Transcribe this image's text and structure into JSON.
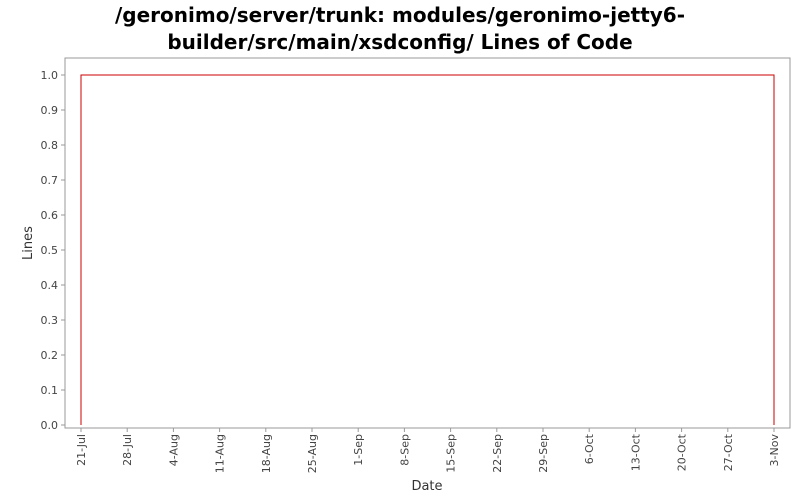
{
  "chart_data": {
    "type": "line",
    "title_lines": [
      "/geronimo/server/trunk: modules/geronimo-jetty6-",
      "builder/src/main/xsdconfig/ Lines of Code"
    ],
    "xlabel": "Date",
    "ylabel": "Lines",
    "x_ticks": [
      "21-Jul",
      "28-Jul",
      "4-Aug",
      "11-Aug",
      "18-Aug",
      "25-Aug",
      "1-Sep",
      "8-Sep",
      "15-Sep",
      "22-Sep",
      "29-Sep",
      "6-Oct",
      "13-Oct",
      "20-Oct",
      "27-Oct",
      "3-Nov"
    ],
    "y_ticks": [
      "0.0",
      "0.1",
      "0.2",
      "0.3",
      "0.4",
      "0.5",
      "0.6",
      "0.7",
      "0.8",
      "0.9",
      "1.0"
    ],
    "ylim": [
      0.0,
      1.0
    ],
    "series": [
      {
        "color": "#cc0000",
        "x": [
          "21-Jul",
          "21-Jul",
          "3-Nov",
          "3-Nov"
        ],
        "values": [
          0,
          1,
          1,
          0
        ]
      }
    ],
    "grid": false,
    "legend": "none"
  }
}
